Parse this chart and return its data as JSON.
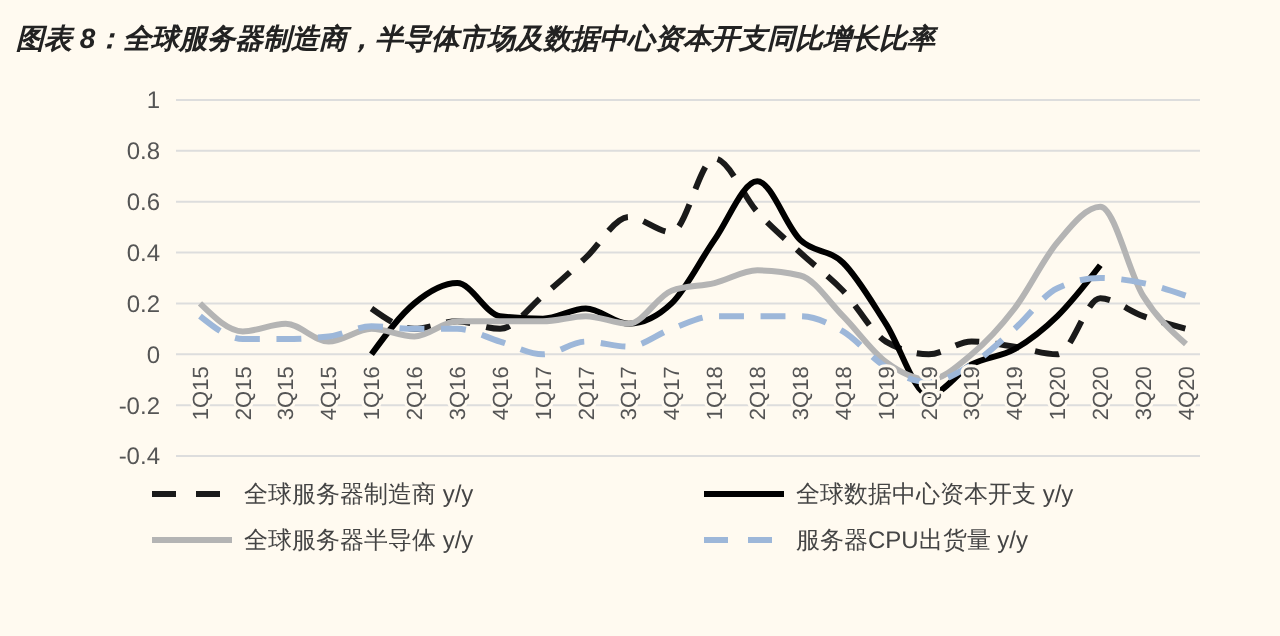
{
  "chart_data": {
    "type": "line",
    "title": "图表 8：全球服务器制造商，半导体市场及数据中心资本开支同比增长比率",
    "categories": [
      "1Q15",
      "2Q15",
      "3Q15",
      "4Q15",
      "1Q16",
      "2Q16",
      "3Q16",
      "4Q16",
      "1Q17",
      "2Q17",
      "3Q17",
      "4Q17",
      "1Q18",
      "2Q18",
      "3Q18",
      "4Q18",
      "1Q19",
      "2Q19",
      "3Q19",
      "4Q19",
      "1Q20",
      "2Q20",
      "3Q20",
      "4Q20"
    ],
    "series": [
      {
        "name": "全球服务器制造商 y/y",
        "color": "#1a1a1a",
        "line_style": "dashed",
        "values": [
          null,
          null,
          null,
          null,
          0.18,
          0.1,
          0.13,
          0.1,
          0.23,
          0.38,
          0.54,
          0.48,
          0.77,
          0.56,
          0.4,
          0.25,
          0.05,
          0.0,
          0.05,
          0.03,
          0.0,
          0.22,
          0.15,
          0.1
        ]
      },
      {
        "name": "全球数据中心资本开支 y/y",
        "color": "#000000",
        "line_style": "solid",
        "values": [
          null,
          null,
          null,
          null,
          0.0,
          0.2,
          0.28,
          0.15,
          0.14,
          0.18,
          0.12,
          0.2,
          0.45,
          0.68,
          0.45,
          0.36,
          0.12,
          -0.16,
          -0.04,
          0.02,
          0.15,
          0.35,
          null,
          null
        ]
      },
      {
        "name": "全球服务器半导体 y/y",
        "color": "#b4b4b4",
        "line_style": "solid",
        "values": [
          0.2,
          0.09,
          0.12,
          0.05,
          0.1,
          0.07,
          0.13,
          0.13,
          0.13,
          0.15,
          0.12,
          0.25,
          0.28,
          0.33,
          0.31,
          0.15,
          -0.03,
          -0.1,
          0.0,
          0.18,
          0.44,
          0.58,
          0.23,
          0.04
        ]
      },
      {
        "name": "服务器CPU出货量 y/y",
        "color": "#9db7d9",
        "line_style": "dashed",
        "values": [
          0.15,
          0.06,
          0.06,
          0.07,
          0.11,
          0.1,
          0.1,
          0.05,
          0.0,
          0.05,
          0.03,
          0.1,
          0.15,
          0.15,
          0.15,
          0.09,
          -0.05,
          -0.11,
          -0.04,
          0.1,
          0.26,
          0.3,
          0.28,
          0.23
        ]
      }
    ],
    "ylim": [
      -0.4,
      1
    ],
    "yticks": [
      -0.4,
      -0.2,
      0,
      0.2,
      0.4,
      0.6,
      0.8,
      1
    ],
    "grid": "y",
    "legend": "bottom"
  }
}
